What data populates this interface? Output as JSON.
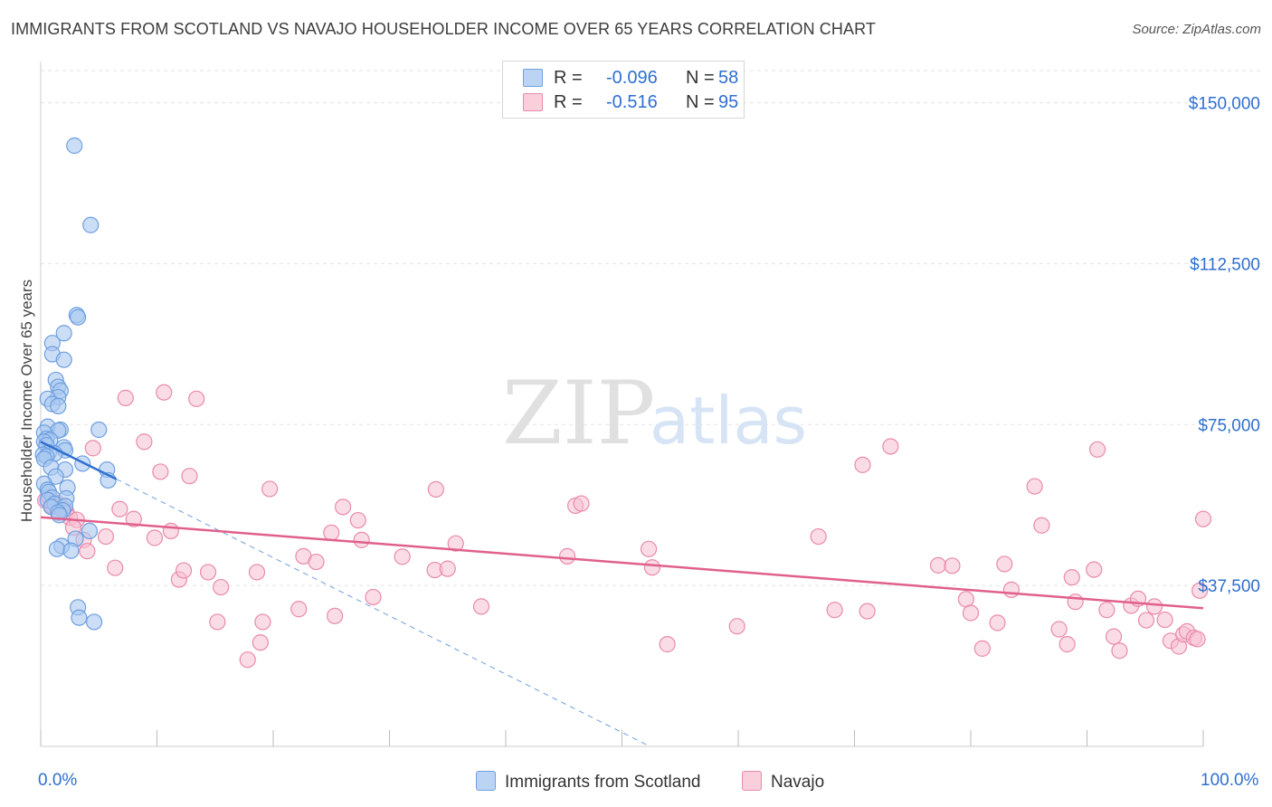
{
  "title": "IMMIGRANTS FROM SCOTLAND VS NAVAJO HOUSEHOLDER INCOME OVER 65 YEARS CORRELATION CHART",
  "source": "Source: ZipAtlas.com",
  "watermark": {
    "zip": "ZIP",
    "atlas": "atlas"
  },
  "legend_box": {
    "r_label": "R =",
    "n_label": "N =",
    "rows": [
      {
        "r": "-0.096",
        "n": "58"
      },
      {
        "r": "-0.516",
        "n": "95"
      }
    ]
  },
  "bottom_legend": [
    "Immigrants from Scotland",
    "Navajo"
  ],
  "x_labels": {
    "left": "0.0%",
    "right": "100.0%"
  },
  "colors": {
    "blue_fill": "#a9c8f0",
    "blue_stroke": "#6e9fe0",
    "blue_line": "#2f6fd0",
    "pink_fill": "#f6c0d2",
    "pink_stroke": "#e98aab",
    "pink_line": "#e0608c",
    "accent_text": "#2f6fd0",
    "grid": "#e3e3e3"
  },
  "chart_data": {
    "type": "scatter",
    "title": "IMMIGRANTS FROM SCOTLAND VS NAVAJO HOUSEHOLDER INCOME OVER 65 YEARS CORRELATION CHART",
    "xlabel": "",
    "ylabel": "Householder Income Over 65 years",
    "xlim": [
      0,
      100
    ],
    "ylim": [
      0,
      157500
    ],
    "y_ticks": [
      37500,
      75000,
      112500,
      150000
    ],
    "y_tick_labels": [
      "$37,500",
      "$75,000",
      "$112,500",
      "$150,000"
    ],
    "x_ticks": [
      0,
      10,
      20,
      30,
      40,
      50,
      60,
      70,
      80,
      90,
      100
    ],
    "grid": true,
    "series": [
      {
        "name": "Immigrants from Scotland",
        "r": -0.096,
        "n": 58,
        "trend": {
          "x": [
            0,
            6.5
          ],
          "y": [
            71000,
            62300
          ]
        },
        "trend_extension": {
          "x": [
            6.5,
            52.4
          ],
          "y": [
            62300,
            0
          ]
        },
        "points": [
          [
            2.9,
            140000
          ],
          [
            4.3,
            121500
          ],
          [
            3.1,
            100500
          ],
          [
            3.2,
            100000
          ],
          [
            2.0,
            96300
          ],
          [
            1.0,
            94000
          ],
          [
            1.0,
            91400
          ],
          [
            2.0,
            90100
          ],
          [
            1.3,
            85400
          ],
          [
            1.5,
            83800
          ],
          [
            1.7,
            82900
          ],
          [
            1.5,
            81400
          ],
          [
            0.6,
            81000
          ],
          [
            1.0,
            79800
          ],
          [
            1.5,
            79300
          ],
          [
            0.6,
            74500
          ],
          [
            1.7,
            73800
          ],
          [
            1.5,
            73600
          ],
          [
            5.0,
            73800
          ],
          [
            0.3,
            73100
          ],
          [
            0.5,
            71700
          ],
          [
            0.8,
            71400
          ],
          [
            0.3,
            71000
          ],
          [
            0.5,
            70200
          ],
          [
            2.0,
            69700
          ],
          [
            2.1,
            69000
          ],
          [
            0.7,
            68500
          ],
          [
            1.2,
            68200
          ],
          [
            0.2,
            68000
          ],
          [
            0.5,
            67600
          ],
          [
            0.3,
            67000
          ],
          [
            3.6,
            65900
          ],
          [
            0.9,
            65000
          ],
          [
            2.1,
            64500
          ],
          [
            5.7,
            64500
          ],
          [
            1.3,
            62900
          ],
          [
            5.8,
            62000
          ],
          [
            0.3,
            61200
          ],
          [
            2.3,
            60300
          ],
          [
            0.6,
            59800
          ],
          [
            0.7,
            59300
          ],
          [
            1.0,
            58000
          ],
          [
            2.2,
            57800
          ],
          [
            0.6,
            57400
          ],
          [
            1.2,
            56500
          ],
          [
            2.1,
            56000
          ],
          [
            0.9,
            55800
          ],
          [
            1.9,
            55000
          ],
          [
            1.5,
            54500
          ],
          [
            1.6,
            53900
          ],
          [
            3.0,
            48400
          ],
          [
            4.2,
            50200
          ],
          [
            1.8,
            46700
          ],
          [
            1.4,
            46000
          ],
          [
            2.6,
            45600
          ],
          [
            3.2,
            32400
          ],
          [
            3.3,
            30000
          ],
          [
            4.6,
            29000
          ]
        ]
      },
      {
        "name": "Navajo",
        "r": -0.516,
        "n": 95,
        "trend": {
          "x": [
            0,
            100
          ],
          "y": [
            53400,
            32200
          ]
        },
        "points": [
          [
            0.4,
            57300
          ],
          [
            0.7,
            58200
          ],
          [
            1.0,
            56100
          ],
          [
            1.4,
            56700
          ],
          [
            1.8,
            55800
          ],
          [
            2.0,
            55400
          ],
          [
            2.2,
            54600
          ],
          [
            2.5,
            53300
          ],
          [
            3.1,
            52800
          ],
          [
            1.0,
            55800
          ],
          [
            7.3,
            81200
          ],
          [
            10.6,
            82500
          ],
          [
            13.4,
            81000
          ],
          [
            4.5,
            69500
          ],
          [
            8.9,
            71000
          ],
          [
            10.3,
            64000
          ],
          [
            12.8,
            63000
          ],
          [
            6.8,
            55300
          ],
          [
            8.0,
            53000
          ],
          [
            2.8,
            51000
          ],
          [
            3.7,
            48100
          ],
          [
            5.6,
            48900
          ],
          [
            9.8,
            48600
          ],
          [
            11.2,
            50200
          ],
          [
            4.0,
            45500
          ],
          [
            6.4,
            41600
          ],
          [
            11.9,
            38900
          ],
          [
            12.3,
            41000
          ],
          [
            14.4,
            40600
          ],
          [
            15.5,
            37100
          ],
          [
            15.2,
            29000
          ],
          [
            18.6,
            40600
          ],
          [
            19.7,
            60000
          ],
          [
            18.9,
            24200
          ],
          [
            19.1,
            29000
          ],
          [
            17.8,
            20200
          ],
          [
            22.6,
            44300
          ],
          [
            22.2,
            32000
          ],
          [
            23.7,
            43000
          ],
          [
            25.0,
            49800
          ],
          [
            25.3,
            30400
          ],
          [
            26.0,
            55800
          ],
          [
            27.3,
            52700
          ],
          [
            27.6,
            48100
          ],
          [
            28.6,
            34800
          ],
          [
            31.1,
            44200
          ],
          [
            34.0,
            59900
          ],
          [
            33.9,
            41100
          ],
          [
            35.0,
            41400
          ],
          [
            35.7,
            47300
          ],
          [
            37.9,
            32600
          ],
          [
            46.0,
            56100
          ],
          [
            46.5,
            56600
          ],
          [
            45.3,
            44300
          ],
          [
            52.3,
            46000
          ],
          [
            52.6,
            41700
          ],
          [
            53.9,
            23800
          ],
          [
            59.9,
            28000
          ],
          [
            66.9,
            48900
          ],
          [
            68.3,
            31800
          ],
          [
            71.1,
            31500
          ],
          [
            70.7,
            65600
          ],
          [
            73.1,
            69900
          ],
          [
            77.2,
            42200
          ],
          [
            78.4,
            42100
          ],
          [
            79.6,
            34300
          ],
          [
            80.0,
            31100
          ],
          [
            81.0,
            22800
          ],
          [
            82.3,
            28800
          ],
          [
            82.9,
            42500
          ],
          [
            83.5,
            36500
          ],
          [
            85.5,
            60600
          ],
          [
            86.1,
            51500
          ],
          [
            87.6,
            27300
          ],
          [
            88.3,
            23800
          ],
          [
            88.7,
            39400
          ],
          [
            89.0,
            33700
          ],
          [
            90.6,
            41200
          ],
          [
            91.7,
            31800
          ],
          [
            90.9,
            69200
          ],
          [
            92.3,
            25600
          ],
          [
            92.8,
            22300
          ],
          [
            93.8,
            32800
          ],
          [
            94.4,
            34400
          ],
          [
            95.1,
            29400
          ],
          [
            95.8,
            32600
          ],
          [
            96.7,
            29500
          ],
          [
            97.2,
            24600
          ],
          [
            97.9,
            23300
          ],
          [
            98.3,
            26100
          ],
          [
            98.6,
            26800
          ],
          [
            99.2,
            25300
          ],
          [
            99.5,
            25000
          ],
          [
            99.7,
            36300
          ],
          [
            100.0,
            53000
          ]
        ]
      }
    ]
  }
}
